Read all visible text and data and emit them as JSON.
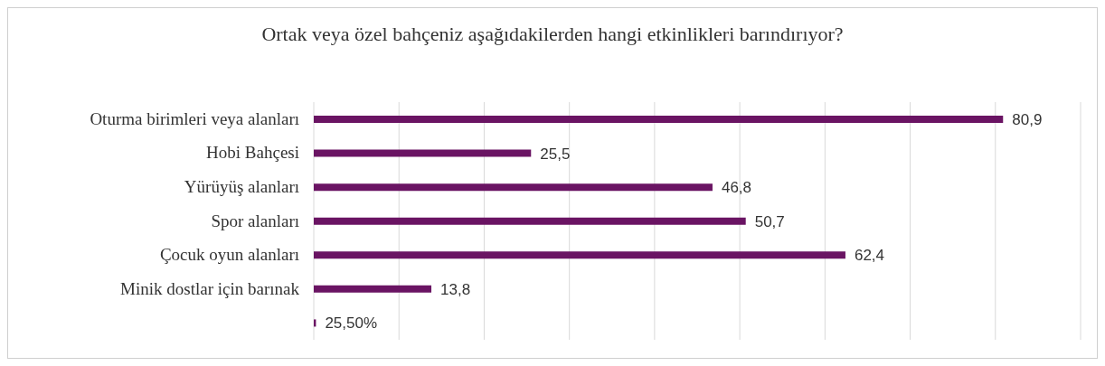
{
  "chart_data": {
    "type": "bar",
    "orientation": "horizontal",
    "title": "Ortak veya özel bahçeniz aşağıdakilerden hangi etkinlikleri barındırıyor?",
    "categories": [
      "Oturma birimleri veya alanları",
      "Hobi Bahçesi",
      "Yürüyüş alanları",
      "Spor alanları",
      "Çocuk oyun alanları",
      "Minik dostlar için barınak",
      null
    ],
    "values": [
      80.9,
      25.5,
      46.8,
      50.7,
      62.4,
      13.8,
      0.255
    ],
    "value_labels": [
      "80,9",
      "25,5",
      "46,8",
      "50,7",
      "62,4",
      "13,8",
      "25,50%"
    ],
    "color": "#6a1463",
    "xlim": [
      0,
      90
    ],
    "tick_labels": "y",
    "grid": "x",
    "legend": false
  }
}
